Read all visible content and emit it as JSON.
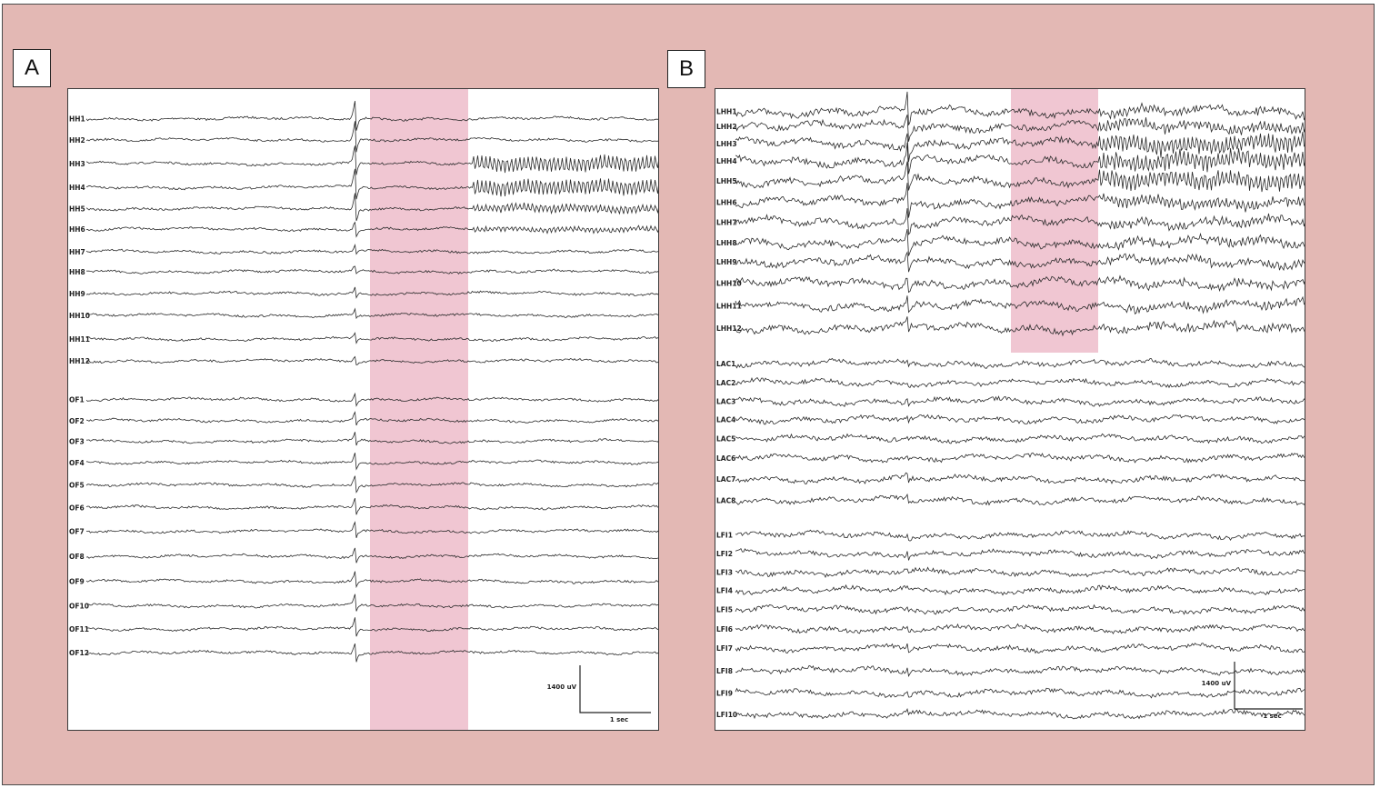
{
  "panels": [
    {
      "label": "A",
      "highlight_color": "#f0c6d2",
      "channels": [
        {
          "name": "HH1",
          "burst": "none",
          "spike": 1.0,
          "y_pos": 0.046
        },
        {
          "name": "HH2",
          "burst": "none",
          "spike": 1.0,
          "y_pos": 0.079
        },
        {
          "name": "HH3",
          "burst": "high",
          "spike": 1.0,
          "y_pos": 0.116
        },
        {
          "name": "HH4",
          "burst": "high",
          "spike": 1.0,
          "y_pos": 0.153
        },
        {
          "name": "HH5",
          "burst": "mid",
          "spike": 0.9,
          "y_pos": 0.186
        },
        {
          "name": "HH6",
          "burst": "low",
          "spike": 0.5,
          "y_pos": 0.218
        },
        {
          "name": "HH7",
          "burst": "none",
          "spike": 0.3,
          "y_pos": 0.253
        },
        {
          "name": "HH8",
          "burst": "none",
          "spike": 0.3,
          "y_pos": 0.284
        },
        {
          "name": "HH9",
          "burst": "none",
          "spike": 0.3,
          "y_pos": 0.318
        },
        {
          "name": "HH10",
          "burst": "none",
          "spike": 0.3,
          "y_pos": 0.352
        },
        {
          "name": "HH11",
          "burst": "none",
          "spike": 0.3,
          "y_pos": 0.389
        },
        {
          "name": "HH12",
          "burst": "none",
          "spike": 0.3,
          "y_pos": 0.423
        },
        {
          "name": "OF1",
          "burst": "none",
          "spike": 0.4,
          "y_pos": 0.483
        },
        {
          "name": "OF2",
          "burst": "none",
          "spike": 0.4,
          "y_pos": 0.516
        },
        {
          "name": "OF3",
          "burst": "none",
          "spike": 0.4,
          "y_pos": 0.548
        },
        {
          "name": "OF4",
          "burst": "none",
          "spike": 0.5,
          "y_pos": 0.581
        },
        {
          "name": "OF5",
          "burst": "none",
          "spike": 0.5,
          "y_pos": 0.616
        },
        {
          "name": "OF6",
          "burst": "none",
          "spike": 0.5,
          "y_pos": 0.651
        },
        {
          "name": "OF7",
          "burst": "none",
          "spike": 0.5,
          "y_pos": 0.688
        },
        {
          "name": "OF8",
          "burst": "none",
          "spike": 0.5,
          "y_pos": 0.727
        },
        {
          "name": "OF9",
          "burst": "none",
          "spike": 0.5,
          "y_pos": 0.766
        },
        {
          "name": "OF10",
          "burst": "none",
          "spike": 0.6,
          "y_pos": 0.804
        },
        {
          "name": "OF11",
          "burst": "none",
          "spike": 0.6,
          "y_pos": 0.84
        },
        {
          "name": "OF12",
          "burst": "none",
          "spike": 0.6,
          "y_pos": 0.877
        }
      ],
      "scale": {
        "amplitude": "1400 uV",
        "time": "1 sec"
      }
    },
    {
      "label": "B",
      "highlight_color": "#f0c6d2",
      "channels": [
        {
          "name": "LHH1",
          "burst": "low",
          "spike": 1.0,
          "y_pos": 0.035
        },
        {
          "name": "LHH2",
          "burst": "mid",
          "spike": 1.0,
          "y_pos": 0.058
        },
        {
          "name": "LHH3",
          "burst": "high",
          "spike": 1.0,
          "y_pos": 0.085
        },
        {
          "name": "LHH4",
          "burst": "high",
          "spike": 1.0,
          "y_pos": 0.112
        },
        {
          "name": "LHH5",
          "burst": "high",
          "spike": 1.0,
          "y_pos": 0.143
        },
        {
          "name": "LHH6",
          "burst": "mid",
          "spike": 1.0,
          "y_pos": 0.176
        },
        {
          "name": "LHH7",
          "burst": "low",
          "spike": 0.8,
          "y_pos": 0.207
        },
        {
          "name": "LHH8",
          "burst": "low",
          "spike": 0.8,
          "y_pos": 0.239
        },
        {
          "name": "LHH9",
          "burst": "low",
          "spike": 0.7,
          "y_pos": 0.269
        },
        {
          "name": "LHH10",
          "burst": "low",
          "spike": 0.6,
          "y_pos": 0.302
        },
        {
          "name": "LHH11",
          "burst": "low",
          "spike": 0.6,
          "y_pos": 0.337
        },
        {
          "name": "LHH12",
          "burst": "low",
          "spike": 0.6,
          "y_pos": 0.372
        },
        {
          "name": "LAC1",
          "burst": "none",
          "spike": 0.2,
          "y_pos": 0.427
        },
        {
          "name": "LAC2",
          "burst": "none",
          "spike": 0.2,
          "y_pos": 0.457
        },
        {
          "name": "LAC3",
          "burst": "none",
          "spike": 0.2,
          "y_pos": 0.486
        },
        {
          "name": "LAC4",
          "burst": "none",
          "spike": 0.2,
          "y_pos": 0.514
        },
        {
          "name": "LAC5",
          "burst": "none",
          "spike": 0.2,
          "y_pos": 0.544
        },
        {
          "name": "LAC6",
          "burst": "none",
          "spike": 0.2,
          "y_pos": 0.574
        },
        {
          "name": "LAC7",
          "burst": "none",
          "spike": 0.3,
          "y_pos": 0.607
        },
        {
          "name": "LAC8",
          "burst": "none",
          "spike": 0.3,
          "y_pos": 0.64
        },
        {
          "name": "LFI1",
          "burst": "none",
          "spike": 0.2,
          "y_pos": 0.694
        },
        {
          "name": "LFI2",
          "burst": "none",
          "spike": 0.2,
          "y_pos": 0.723
        },
        {
          "name": "LFI3",
          "burst": "none",
          "spike": 0.2,
          "y_pos": 0.752
        },
        {
          "name": "LFI4",
          "burst": "none",
          "spike": 0.2,
          "y_pos": 0.78
        },
        {
          "name": "LFI5",
          "burst": "none",
          "spike": 0.2,
          "y_pos": 0.81
        },
        {
          "name": "LFI6",
          "burst": "none",
          "spike": 0.2,
          "y_pos": 0.84
        },
        {
          "name": "LFI7",
          "burst": "none",
          "spike": 0.2,
          "y_pos": 0.87
        },
        {
          "name": "LFI8",
          "burst": "none",
          "spike": 0.2,
          "y_pos": 0.905
        },
        {
          "name": "LFI9",
          "burst": "none",
          "spike": 0.2,
          "y_pos": 0.94
        },
        {
          "name": "LFI10",
          "burst": "none",
          "spike": 0.2,
          "y_pos": 0.973
        }
      ],
      "scale": {
        "amplitude": "1400 uV",
        "time": "1 sec"
      }
    }
  ]
}
